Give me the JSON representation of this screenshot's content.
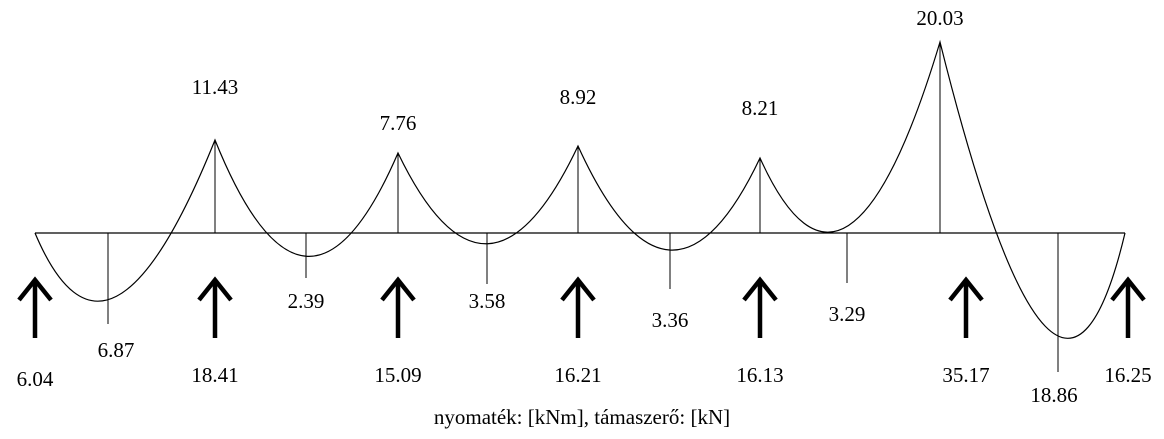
{
  "moments": {
    "supports": [
      "0",
      "11.43",
      "7.76",
      "8.92",
      "8.21",
      "20.03",
      "0"
    ],
    "spans": [
      "6.87",
      "2.39",
      "3.58",
      "3.36",
      "3.29",
      "18.86"
    ]
  },
  "reactions": [
    "6.04",
    "18.41",
    "15.09",
    "16.21",
    "16.13",
    "35.17",
    "16.25"
  ],
  "caption": "nyomaték: [kNm], támaszerő: [kN]"
}
